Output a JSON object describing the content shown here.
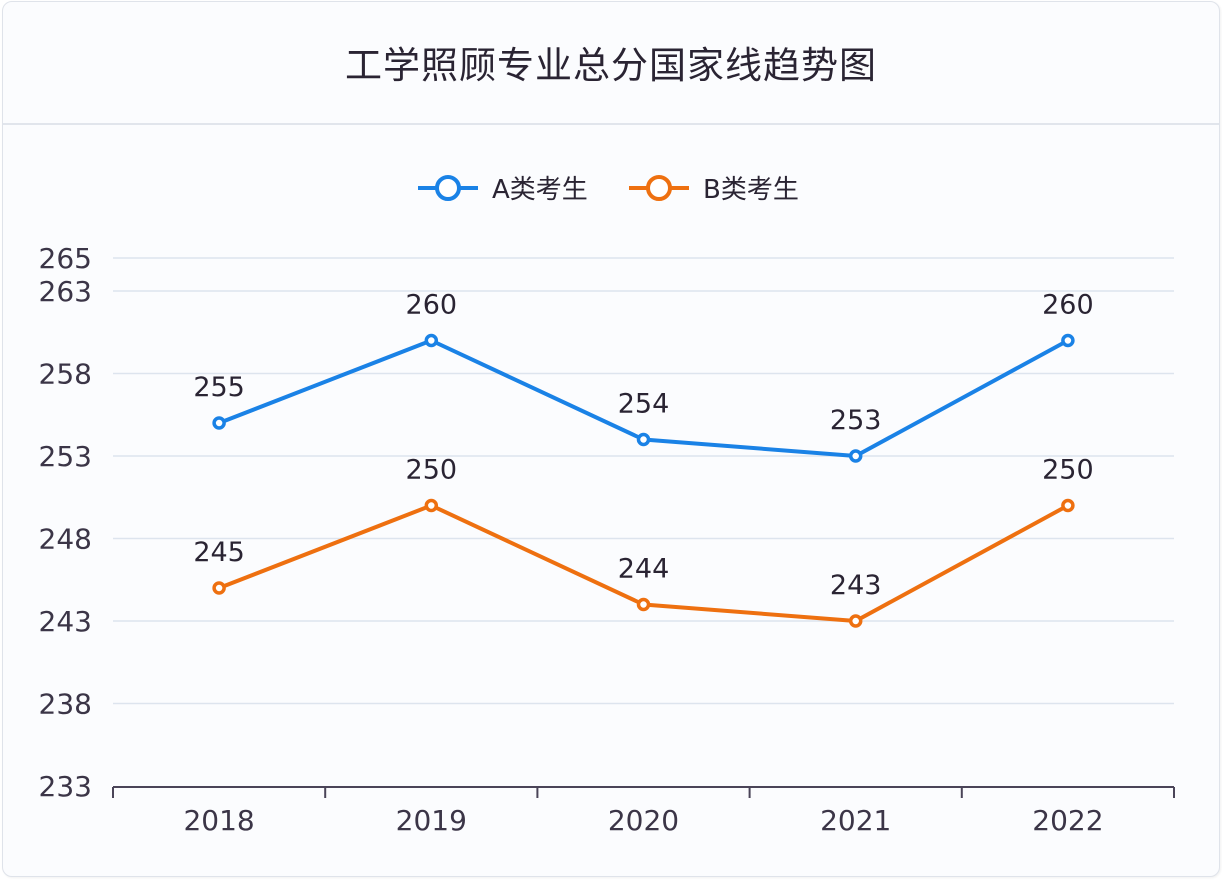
{
  "chart_data": {
    "type": "line",
    "title": "工学照顾专业总分国家线趋势图",
    "categories": [
      "2018",
      "2019",
      "2020",
      "2021",
      "2022"
    ],
    "series": [
      {
        "name": "A类考生",
        "color": "#1a82e6",
        "values": [
          255,
          260,
          254,
          253,
          260
        ]
      },
      {
        "name": "B类考生",
        "color": "#ee7010",
        "values": [
          245,
          250,
          244,
          243,
          250
        ]
      }
    ],
    "xlabel": "",
    "ylabel": "",
    "ylim": [
      233,
      265
    ],
    "yticks": [
      233,
      238,
      243,
      248,
      253,
      258,
      263,
      265
    ],
    "grid": true,
    "legend": "top-center",
    "data_labels": true
  }
}
